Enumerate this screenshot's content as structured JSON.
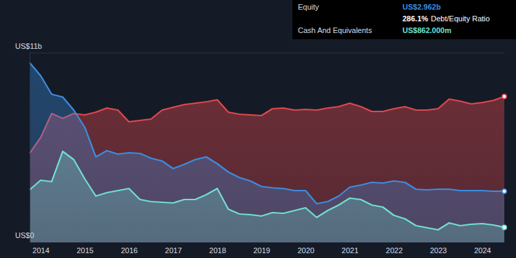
{
  "chart_data": {
    "type": "area",
    "x": [
      2013.75,
      2014.0,
      2014.25,
      2014.5,
      2014.75,
      2015.0,
      2015.25,
      2015.5,
      2015.75,
      2016.0,
      2016.25,
      2016.5,
      2016.75,
      2017.0,
      2017.25,
      2017.5,
      2017.75,
      2018.0,
      2018.25,
      2018.5,
      2018.75,
      2019.0,
      2019.25,
      2019.5,
      2019.75,
      2020.0,
      2020.25,
      2020.5,
      2020.75,
      2021.0,
      2021.25,
      2021.5,
      2021.75,
      2022.0,
      2022.25,
      2022.5,
      2022.75,
      2023.0,
      2023.25,
      2023.5,
      2023.75,
      2024.0,
      2024.25,
      2024.5
    ],
    "series": [
      {
        "color": "#e0484f",
        "values": [
          5.16,
          6.08,
          7.48,
          7.2,
          7.48,
          7.4,
          7.56,
          7.8,
          7.68,
          7.0,
          7.08,
          7.16,
          7.68,
          7.84,
          8.0,
          8.08,
          8.16,
          8.28,
          7.56,
          7.44,
          7.4,
          7.36,
          7.76,
          7.8,
          7.68,
          7.72,
          7.68,
          7.8,
          7.88,
          8.08,
          7.88,
          7.6,
          7.6,
          7.76,
          7.88,
          7.68,
          7.68,
          7.76,
          8.32,
          8.2,
          8.04,
          8.12,
          8.24,
          8.47
        ]
      },
      {
        "color": "#3b8de0",
        "values": [
          10.44,
          9.68,
          8.6,
          8.44,
          7.68,
          6.68,
          4.96,
          5.32,
          5.12,
          5.2,
          5.16,
          4.88,
          4.72,
          4.28,
          4.52,
          4.8,
          4.96,
          4.56,
          4.08,
          3.76,
          3.56,
          3.24,
          3.16,
          3.12,
          3.0,
          3.0,
          2.24,
          2.36,
          2.68,
          3.2,
          3.32,
          3.48,
          3.44,
          3.56,
          3.48,
          3.08,
          3.04,
          3.08,
          3.08,
          3.0,
          3.0,
          3.0,
          2.96,
          2.962
        ]
      },
      {
        "color": "#6fe0cf",
        "values": [
          3.04,
          3.6,
          3.52,
          5.28,
          4.8,
          3.68,
          2.68,
          2.88,
          3.0,
          3.12,
          2.48,
          2.36,
          2.32,
          2.28,
          2.48,
          2.48,
          2.76,
          3.12,
          1.92,
          1.64,
          1.6,
          1.52,
          1.72,
          1.68,
          1.84,
          2.0,
          1.44,
          1.84,
          2.16,
          2.56,
          2.48,
          2.16,
          2.04,
          1.56,
          1.36,
          0.96,
          0.84,
          0.72,
          1.12,
          0.96,
          1.04,
          1.08,
          1.0,
          0.862
        ]
      }
    ],
    "xlim": [
      2013.75,
      2024.5
    ],
    "xticks": [
      2014,
      2015,
      2016,
      2017,
      2018,
      2019,
      2020,
      2021,
      2022,
      2023,
      2024
    ],
    "ylim": [
      0,
      11
    ],
    "yticks": [
      {
        "value": 0,
        "label": "US$0"
      },
      {
        "value": 11,
        "label": "US$11b"
      }
    ],
    "grid": true,
    "tooltip": {
      "equity": {
        "label": "Equity",
        "value": "US$2.962b"
      },
      "ratio": {
        "value": "286.1%",
        "label": "Debt/Equity Ratio"
      },
      "cash": {
        "label": "Cash And Equivalents",
        "value": "US$862.000m"
      }
    }
  }
}
